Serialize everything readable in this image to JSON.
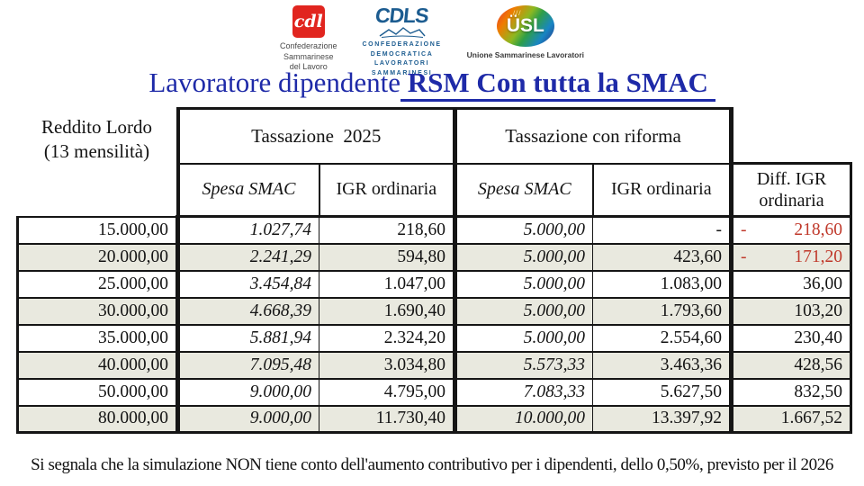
{
  "logos": {
    "csdl": {
      "monogram": "cdl",
      "name_lines": [
        "Confederazione",
        "Sammarinese",
        "del Lavoro"
      ],
      "brand_color": "#e1251f"
    },
    "cdls": {
      "monogram": "CDLS",
      "name_lines": [
        "CONFEDERAZIONE",
        "DEMOCRATICA",
        "LAVORATORI",
        "SAMMARINESI"
      ],
      "brand_color": "#1c5c90"
    },
    "usl": {
      "monogram": "ÜSL",
      "feathers": "///",
      "name": "Unione Sammarinese Lavoratori"
    }
  },
  "title": {
    "normal": "Lavoratore dipendente",
    "emphasis": " RSM Con tutta la SMAC ",
    "color": "#1e2aa8"
  },
  "table": {
    "row_header": {
      "line1": "Reddito Lordo",
      "line2": "(13 mensilità)"
    },
    "groups": [
      {
        "label": "Tassazione  2025"
      },
      {
        "label": "Tassazione con riforma"
      }
    ],
    "columns": [
      "Spesa SMAC",
      "IGR ordinaria",
      "Spesa SMAC",
      "IGR ordinaria"
    ],
    "diff_header": {
      "line1": "Diff. IGR",
      "line2": "ordinaria"
    },
    "rows": [
      {
        "reddito": "15.000,00",
        "spesa_2025": "1.027,74",
        "igr_2025": "218,60",
        "spesa_rif": "5.000,00",
        "igr_rif": "-",
        "diff": "218,60",
        "diff_negative": true
      },
      {
        "reddito": "20.000,00",
        "spesa_2025": "2.241,29",
        "igr_2025": "594,80",
        "spesa_rif": "5.000,00",
        "igr_rif": "423,60",
        "diff": "171,20",
        "diff_negative": true
      },
      {
        "reddito": "25.000,00",
        "spesa_2025": "3.454,84",
        "igr_2025": "1.047,00",
        "spesa_rif": "5.000,00",
        "igr_rif": "1.083,00",
        "diff": "36,00",
        "diff_negative": false
      },
      {
        "reddito": "30.000,00",
        "spesa_2025": "4.668,39",
        "igr_2025": "1.690,40",
        "spesa_rif": "5.000,00",
        "igr_rif": "1.793,60",
        "diff": "103,20",
        "diff_negative": false
      },
      {
        "reddito": "35.000,00",
        "spesa_2025": "5.881,94",
        "igr_2025": "2.324,20",
        "spesa_rif": "5.000,00",
        "igr_rif": "2.554,60",
        "diff": "230,40",
        "diff_negative": false
      },
      {
        "reddito": "40.000,00",
        "spesa_2025": "7.095,48",
        "igr_2025": "3.034,80",
        "spesa_rif": "5.573,33",
        "igr_rif": "3.463,36",
        "diff": "428,56",
        "diff_negative": false
      },
      {
        "reddito": "50.000,00",
        "spesa_2025": "9.000,00",
        "igr_2025": "4.795,00",
        "spesa_rif": "7.083,33",
        "igr_rif": "5.627,50",
        "diff": "832,50",
        "diff_negative": false
      },
      {
        "reddito": "80.000,00",
        "spesa_2025": "9.000,00",
        "igr_2025": "11.730,40",
        "spesa_rif": "10.000,00",
        "igr_rif": "13.397,92",
        "diff": "1.667,52",
        "diff_negative": false
      }
    ],
    "colors": {
      "alt_row": "#e9e9df",
      "negative_value": "#c0392b",
      "border": "#151515"
    }
  },
  "footer": {
    "note": "Si segnala che la simulazione NON tiene conto dell'aumento contributivo per i dipendenti, dello 0,50%, previsto per il 2026"
  }
}
